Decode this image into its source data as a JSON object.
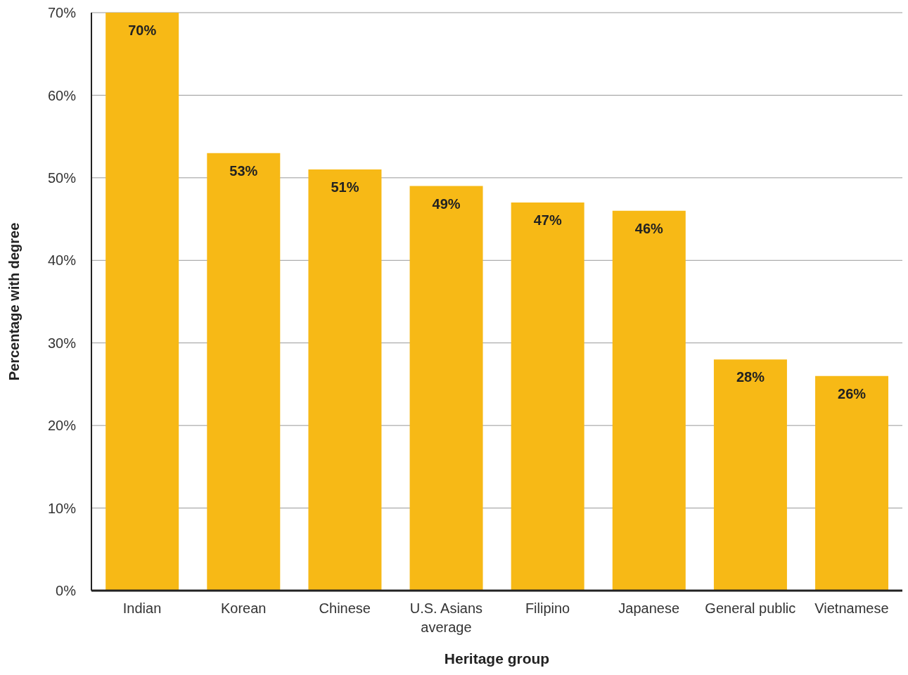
{
  "chart_data": {
    "type": "bar",
    "xlabel": "Heritage group",
    "ylabel": "Percentage with degree",
    "categories": [
      "Indian",
      "Korean",
      "Chinese",
      "U.S. Asians average",
      "Filipino",
      "Japanese",
      "General public",
      "Vietnamese"
    ],
    "values": [
      70,
      53,
      51,
      49,
      47,
      46,
      28,
      26
    ],
    "value_labels": [
      "70%",
      "53%",
      "51%",
      "49%",
      "47%",
      "46%",
      "28%",
      "26%"
    ],
    "color": "#f7b916",
    "ylim": [
      0,
      70
    ],
    "yticks": [
      {
        "value": 0,
        "label": "0%"
      },
      {
        "value": 10,
        "label": "10%"
      },
      {
        "value": 20,
        "label": "20%"
      },
      {
        "value": 30,
        "label": "30%"
      },
      {
        "value": 40,
        "label": "40%"
      },
      {
        "value": 50,
        "label": "50%"
      },
      {
        "value": 60,
        "label": "60%"
      },
      {
        "value": 70,
        "label": "70%"
      }
    ],
    "grid": "y"
  }
}
